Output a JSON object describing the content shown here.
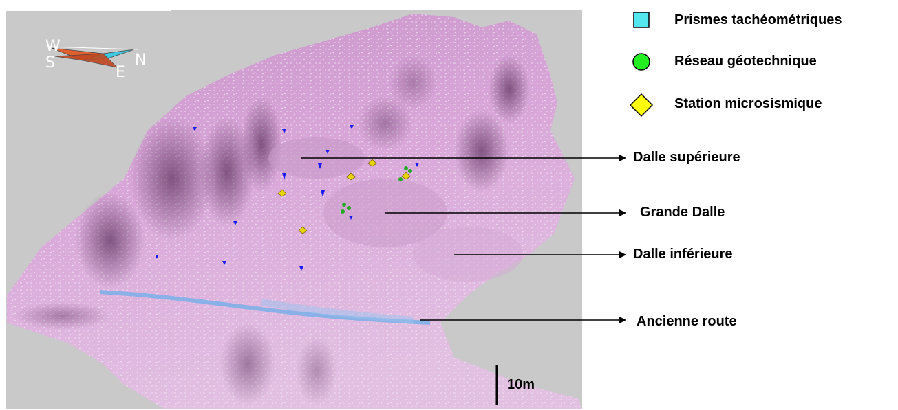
{
  "legend": {
    "items": [
      {
        "label": "Prismes tachéométriques",
        "symbol": "square",
        "color": "#55e7f0"
      },
      {
        "label": "Réseau géotechnique",
        "symbol": "circle",
        "color": "#22ee22"
      },
      {
        "label": "Station microsismique",
        "symbol": "diamond",
        "color": "#ffff00"
      }
    ]
  },
  "annotations": [
    {
      "label": "Dalle supérieure"
    },
    {
      "label": "Grande Dalle"
    },
    {
      "label": "Dalle inférieure"
    },
    {
      "label": "Ancienne route"
    }
  ],
  "compass": {
    "w": "W",
    "s": "S",
    "e": "E",
    "n": "N"
  },
  "scale_bar": {
    "label": "10m"
  },
  "colors": {
    "terrain": "#d9a8d9",
    "terrain_dark": "#8a5a8a",
    "background": "#c9c9c9",
    "road": "#7fb0e8",
    "prism": "#1a1aff",
    "geotech": "#22aa22",
    "microseismic": "#e8d400"
  }
}
